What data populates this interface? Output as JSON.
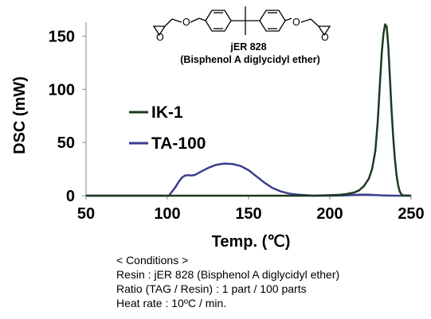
{
  "chart_data": {
    "type": "line",
    "title": "",
    "xlabel": "Temp. (℃)",
    "ylabel": "DSC (mW)",
    "xlim": [
      50,
      250
    ],
    "ylim": [
      0,
      160
    ],
    "x_ticks": [
      "50",
      "100",
      "150",
      "200",
      "250"
    ],
    "y_ticks": [
      "0",
      "50",
      "100",
      "150"
    ],
    "grid": false,
    "legend_position": "center-left",
    "series": [
      {
        "name": "IK-1",
        "color": "#1d3a1d",
        "points": [
          [
            50,
            0
          ],
          [
            150,
            0
          ],
          [
            190,
            0
          ],
          [
            200,
            0.5
          ],
          [
            205,
            0.7
          ],
          [
            210,
            1.5
          ],
          [
            215,
            3
          ],
          [
            218,
            5
          ],
          [
            221,
            9
          ],
          [
            224,
            16
          ],
          [
            226,
            25
          ],
          [
            228,
            42
          ],
          [
            229.5,
            70
          ],
          [
            231,
            110
          ],
          [
            232,
            135
          ],
          [
            233,
            152
          ],
          [
            234,
            161
          ],
          [
            235,
            159
          ],
          [
            236,
            140
          ],
          [
            237,
            110
          ],
          [
            238,
            80
          ],
          [
            239,
            55
          ],
          [
            240,
            35
          ],
          [
            241,
            20
          ],
          [
            242,
            10
          ],
          [
            243,
            4
          ],
          [
            244,
            1.5
          ],
          [
            245,
            0.3
          ],
          [
            250,
            0
          ]
        ]
      },
      {
        "name": "TA-100",
        "color": "#3a3d8f",
        "points": [
          [
            50,
            0
          ],
          [
            101,
            0
          ],
          [
            103,
            4
          ],
          [
            105,
            8
          ],
          [
            107,
            13
          ],
          [
            109,
            17
          ],
          [
            111,
            19
          ],
          [
            113,
            19.3
          ],
          [
            115,
            19
          ],
          [
            117,
            19.5
          ],
          [
            120,
            22
          ],
          [
            125,
            26
          ],
          [
            130,
            29
          ],
          [
            135,
            30.2
          ],
          [
            140,
            29.8
          ],
          [
            145,
            28
          ],
          [
            150,
            24
          ],
          [
            155,
            18
          ],
          [
            160,
            12
          ],
          [
            165,
            7
          ],
          [
            170,
            4
          ],
          [
            175,
            2
          ],
          [
            180,
            1
          ],
          [
            190,
            0
          ],
          [
            200,
            0
          ],
          [
            210,
            0.3
          ],
          [
            215,
            0.7
          ],
          [
            220,
            1
          ],
          [
            225,
            0.8
          ],
          [
            232,
            0.3
          ],
          [
            240,
            0
          ],
          [
            250,
            0
          ]
        ]
      }
    ]
  },
  "structure": {
    "name": "jER 828",
    "full_name": "(Bisphenol A diglycidyl ether)",
    "atom_labels": [
      "O",
      "O",
      "O",
      "O"
    ]
  },
  "conditions": {
    "heading": "< Conditions >",
    "lines": [
      "Resin : jER 828 (Bisphenol A diglycidyl ether)",
      "Ratio (TAG / Resin) : 1 part / 100 parts",
      "Heat rate : 10ºC / min."
    ]
  }
}
